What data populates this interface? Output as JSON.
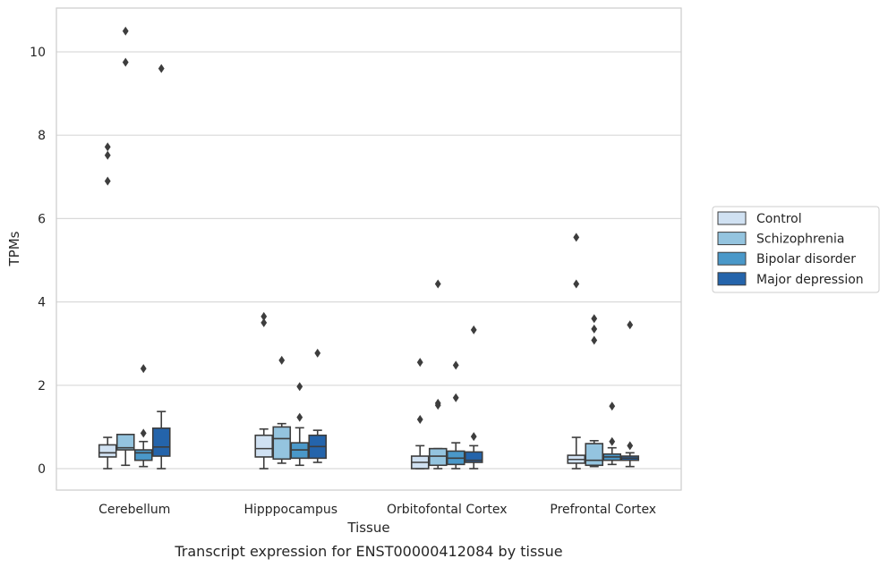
{
  "chart_data": {
    "type": "box",
    "title": "",
    "caption": "Transcript expression for ENST00000412084 by tissue",
    "xlabel": "Tissue",
    "ylabel": "TPMs",
    "ylim": [
      -0.5,
      11.0
    ],
    "yticks": [
      0,
      2,
      4,
      6,
      8,
      10
    ],
    "grid": "horizontal",
    "legend_position": "right",
    "categories": [
      "Cerebellum",
      "Hipppocampus",
      "Orbitofontal Cortex",
      "Prefrontal Cortex"
    ],
    "series": [
      {
        "name": "Control",
        "color": "#d0e1f2",
        "boxes": [
          {
            "whislo": 0.0,
            "q1": 0.28,
            "med": 0.38,
            "q3": 0.57,
            "whishi": 0.75,
            "fliers": [
              7.72,
              7.52,
              6.9
            ]
          },
          {
            "whislo": 0.0,
            "q1": 0.28,
            "med": 0.48,
            "q3": 0.8,
            "whishi": 0.95,
            "fliers": [
              3.65,
              3.5
            ]
          },
          {
            "whislo": 0.0,
            "q1": 0.0,
            "med": 0.15,
            "q3": 0.3,
            "whishi": 0.55,
            "fliers": [
              2.55,
              1.18
            ]
          },
          {
            "whislo": 0.0,
            "q1": 0.13,
            "med": 0.22,
            "q3": 0.32,
            "whishi": 0.75,
            "fliers": [
              5.55,
              4.43
            ]
          }
        ]
      },
      {
        "name": "Schizophrenia",
        "color": "#94c4df",
        "boxes": [
          {
            "whislo": 0.08,
            "q1": 0.45,
            "med": 0.5,
            "q3": 0.82,
            "whishi": 0.82,
            "fliers": [
              10.5,
              9.75
            ]
          },
          {
            "whislo": 0.13,
            "q1": 0.23,
            "med": 0.72,
            "q3": 1.0,
            "whishi": 1.08,
            "fliers": [
              2.6
            ]
          },
          {
            "whislo": 0.0,
            "q1": 0.08,
            "med": 0.3,
            "q3": 0.48,
            "whishi": 0.48,
            "fliers": [
              4.43,
              1.57,
              1.52
            ]
          },
          {
            "whislo": 0.05,
            "q1": 0.08,
            "med": 0.2,
            "q3": 0.6,
            "whishi": 0.67,
            "fliers": [
              3.6,
              3.35,
              3.08
            ]
          }
        ]
      },
      {
        "name": "Bipolar disorder",
        "color": "#4a98c9",
        "boxes": [
          {
            "whislo": 0.05,
            "q1": 0.2,
            "med": 0.38,
            "q3": 0.45,
            "whishi": 0.65,
            "fliers": [
              2.4,
              0.85
            ]
          },
          {
            "whislo": 0.08,
            "q1": 0.25,
            "med": 0.45,
            "q3": 0.62,
            "whishi": 0.98,
            "fliers": [
              1.97,
              1.23
            ]
          },
          {
            "whislo": 0.0,
            "q1": 0.1,
            "med": 0.25,
            "q3": 0.42,
            "whishi": 0.62,
            "fliers": [
              2.48,
              1.7
            ]
          },
          {
            "whislo": 0.1,
            "q1": 0.2,
            "med": 0.28,
            "q3": 0.35,
            "whishi": 0.5,
            "fliers": [
              1.5,
              0.65
            ]
          }
        ]
      },
      {
        "name": "Major depression",
        "color": "#2464ab",
        "boxes": [
          {
            "whislo": 0.0,
            "q1": 0.3,
            "med": 0.52,
            "q3": 0.97,
            "whishi": 1.37,
            "fliers": [
              9.6
            ]
          },
          {
            "whislo": 0.15,
            "q1": 0.25,
            "med": 0.53,
            "q3": 0.8,
            "whishi": 0.92,
            "fliers": [
              2.77
            ]
          },
          {
            "whislo": 0.0,
            "q1": 0.15,
            "med": 0.2,
            "q3": 0.4,
            "whishi": 0.55,
            "fliers": [
              3.33,
              0.77
            ]
          },
          {
            "whislo": 0.05,
            "q1": 0.2,
            "med": 0.25,
            "q3": 0.3,
            "whishi": 0.38,
            "fliers": [
              3.45,
              0.55
            ]
          }
        ]
      }
    ]
  }
}
